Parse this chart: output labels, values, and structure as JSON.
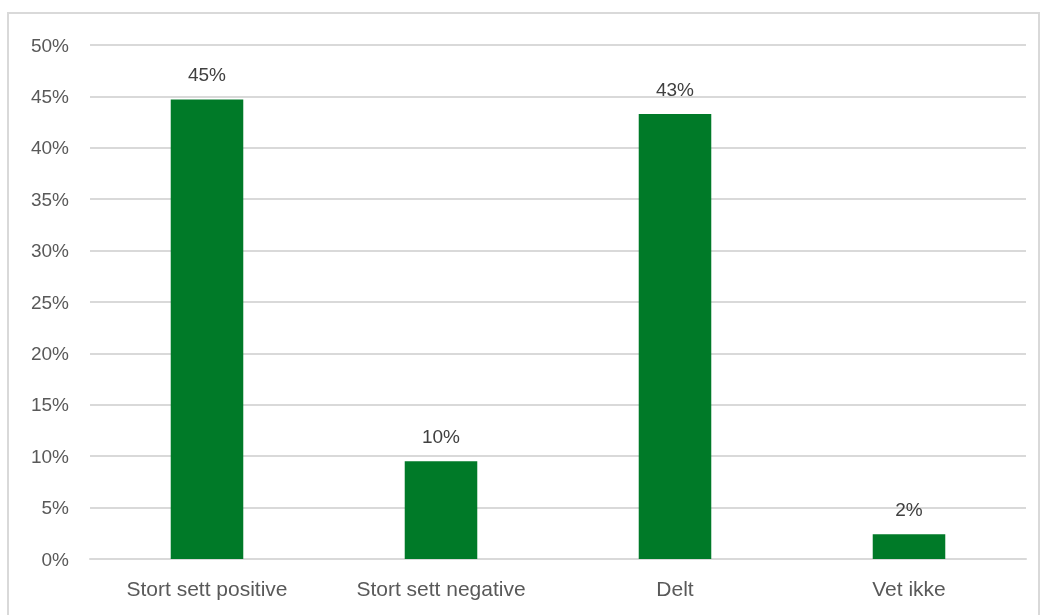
{
  "chart_data": {
    "type": "bar",
    "categories": [
      "Stort sett positive",
      "Stort sett negative",
      "Delt",
      "Vet ikke"
    ],
    "values": [
      44.7,
      9.5,
      43.3,
      2.4
    ],
    "color": "#007a28",
    "value_labels": [
      "45%",
      "10%",
      "43%",
      "2%"
    ],
    "ylim": [
      0,
      50
    ],
    "yticks": [
      {
        "value": 0,
        "label": "0%"
      },
      {
        "value": 5,
        "label": "5%"
      },
      {
        "value": 10,
        "label": "10%"
      },
      {
        "value": 15,
        "label": "15%"
      },
      {
        "value": 20,
        "label": "20%"
      },
      {
        "value": 25,
        "label": "25%"
      },
      {
        "value": 30,
        "label": "30%"
      },
      {
        "value": 35,
        "label": "35%"
      },
      {
        "value": 40,
        "label": "40%"
      },
      {
        "value": 45,
        "label": "45%"
      },
      {
        "value": 50,
        "label": "50%"
      }
    ],
    "grid": "y"
  }
}
